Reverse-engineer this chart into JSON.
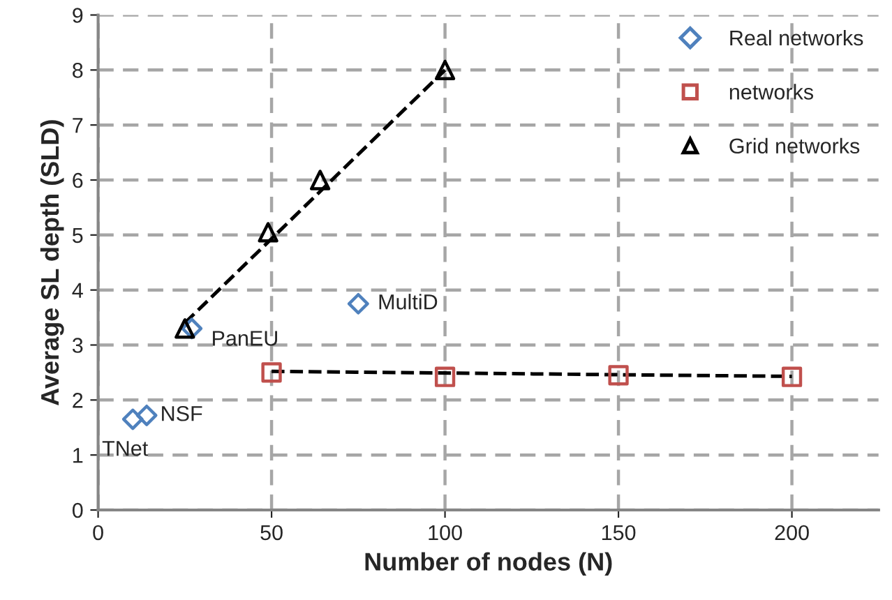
{
  "chart_data": {
    "type": "scatter",
    "xlabel": "Number of nodes (N)",
    "ylabel": "Average SL depth (SLD)",
    "xlim": [
      0,
      225
    ],
    "xticks": [
      0,
      50,
      100,
      150,
      200
    ],
    "ylim": [
      0,
      9
    ],
    "yticks": [
      0,
      1,
      2,
      3,
      4,
      5,
      6,
      7,
      8,
      9
    ],
    "grid": true,
    "legend": "top right",
    "series": [
      {
        "name": "Real networks",
        "color": "#4f81bd",
        "marker": "diamond",
        "x": [
          10,
          14,
          27,
          75
        ],
        "values": [
          1.65,
          1.72,
          3.3,
          3.75
        ]
      },
      {
        "name": "networks",
        "color": "#c0504d",
        "marker": "square",
        "x": [
          50,
          100,
          150,
          200
        ],
        "values": [
          2.5,
          2.42,
          2.45,
          2.42
        ]
      },
      {
        "name": "Grid networks",
        "color": "#000000",
        "marker": "triangle",
        "x": [
          25,
          49,
          64,
          100
        ],
        "values": [
          3.3,
          5.05,
          6.0,
          8.0
        ]
      },
      {
        "type": "line",
        "color": "#000000",
        "marker": "none",
        "line_style": "dashed",
        "x": [
          25,
          100
        ],
        "values": [
          3.4,
          8.0
        ]
      },
      {
        "type": "line",
        "color": "#000000",
        "marker": "none",
        "line_style": "dashed",
        "x": [
          50,
          200
        ],
        "values": [
          2.52,
          2.43
        ]
      }
    ],
    "annotations": [
      {
        "text": "TNet",
        "x": 10,
        "y": 1.65
      },
      {
        "text": "NSF",
        "x": 14,
        "y": 1.72
      },
      {
        "text": "PanEU",
        "x": 27,
        "y": 3.3
      },
      {
        "text": "MultiD",
        "x": 75,
        "y": 3.75
      }
    ]
  }
}
